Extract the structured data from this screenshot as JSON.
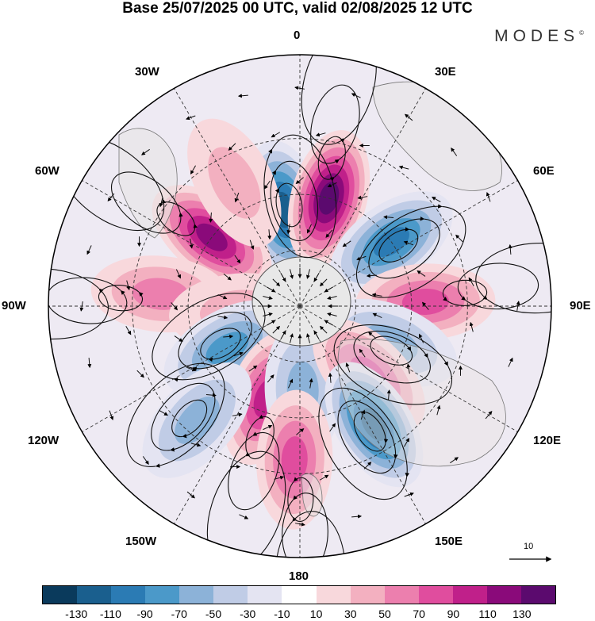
{
  "title": "Base 25/07/2025 00 UTC, valid 02/08/2025 12 UTC",
  "brand": "MODES",
  "brand_mark": "©",
  "lon_labels": {
    "top": "0",
    "e30": "30E",
    "e60": "60E",
    "e90": "90E",
    "e120": "120E",
    "e150": "150E",
    "bottom": "180",
    "w150": "150W",
    "w120": "120W",
    "w90": "90W",
    "w60": "60W",
    "w30": "30W"
  },
  "ref_vector": "10",
  "colorbar": {
    "colors": [
      "#0a3a5c",
      "#1a5f8e",
      "#2b7bb4",
      "#4b99c9",
      "#8cb2d8",
      "#c0cce6",
      "#e4e4f2",
      "#ffffff",
      "#f8d8dc",
      "#f3b0c0",
      "#ec7fae",
      "#e04d9e",
      "#c0208a",
      "#8a0a7a",
      "#5b0a6e"
    ],
    "ticks": [
      "-130",
      "-110",
      "-90",
      "-70",
      "-50",
      "-30",
      "-10",
      "10",
      "30",
      "50",
      "70",
      "90",
      "110",
      "130"
    ]
  },
  "anomaly_lobes": [
    {
      "lon": 350,
      "lat": -55,
      "value": -110
    },
    {
      "lon": 15,
      "lat": -50,
      "value": 120
    },
    {
      "lon": 308,
      "lat": -50,
      "value": 110
    },
    {
      "lon": 55,
      "lat": -50,
      "value": -90
    },
    {
      "lon": 88,
      "lat": -45,
      "value": 70
    },
    {
      "lon": 275,
      "lat": -40,
      "value": 50
    },
    {
      "lon": 265,
      "lat": -68,
      "value": 30
    },
    {
      "lon": 240,
      "lat": -60,
      "value": -60
    },
    {
      "lon": 200,
      "lat": -55,
      "value": 80
    },
    {
      "lon": 178,
      "lat": -60,
      "value": -50
    },
    {
      "lon": 112,
      "lat": -55,
      "value": -50
    },
    {
      "lon": 135,
      "lat": -55,
      "value": 60
    },
    {
      "lon": 148,
      "lat": -40,
      "value": -110
    },
    {
      "lon": 182,
      "lat": -35,
      "value": 70
    },
    {
      "lon": 222,
      "lat": -35,
      "value": -40
    },
    {
      "lon": 332,
      "lat": -40,
      "value": 20
    }
  ],
  "circulations": [
    {
      "lon": 350,
      "lat": -55,
      "sense": "cw"
    },
    {
      "lon": 15,
      "lat": -50,
      "sense": "ccw"
    },
    {
      "lon": 308,
      "lat": -50,
      "sense": "ccw"
    },
    {
      "lon": 55,
      "lat": -50,
      "sense": "cw"
    },
    {
      "lon": 88,
      "lat": -45,
      "sense": "ccw"
    },
    {
      "lon": 275,
      "lat": -40,
      "sense": "ccw"
    },
    {
      "lon": 240,
      "lat": -60,
      "sense": "cw"
    },
    {
      "lon": 200,
      "lat": -55,
      "sense": "ccw"
    },
    {
      "lon": 148,
      "lat": -40,
      "sense": "cw"
    },
    {
      "lon": 182,
      "lat": -35,
      "sense": "ccw"
    },
    {
      "lon": 112,
      "lat": -55,
      "sense": "cw"
    },
    {
      "lon": 222,
      "lat": -35,
      "sense": "cw"
    }
  ]
}
